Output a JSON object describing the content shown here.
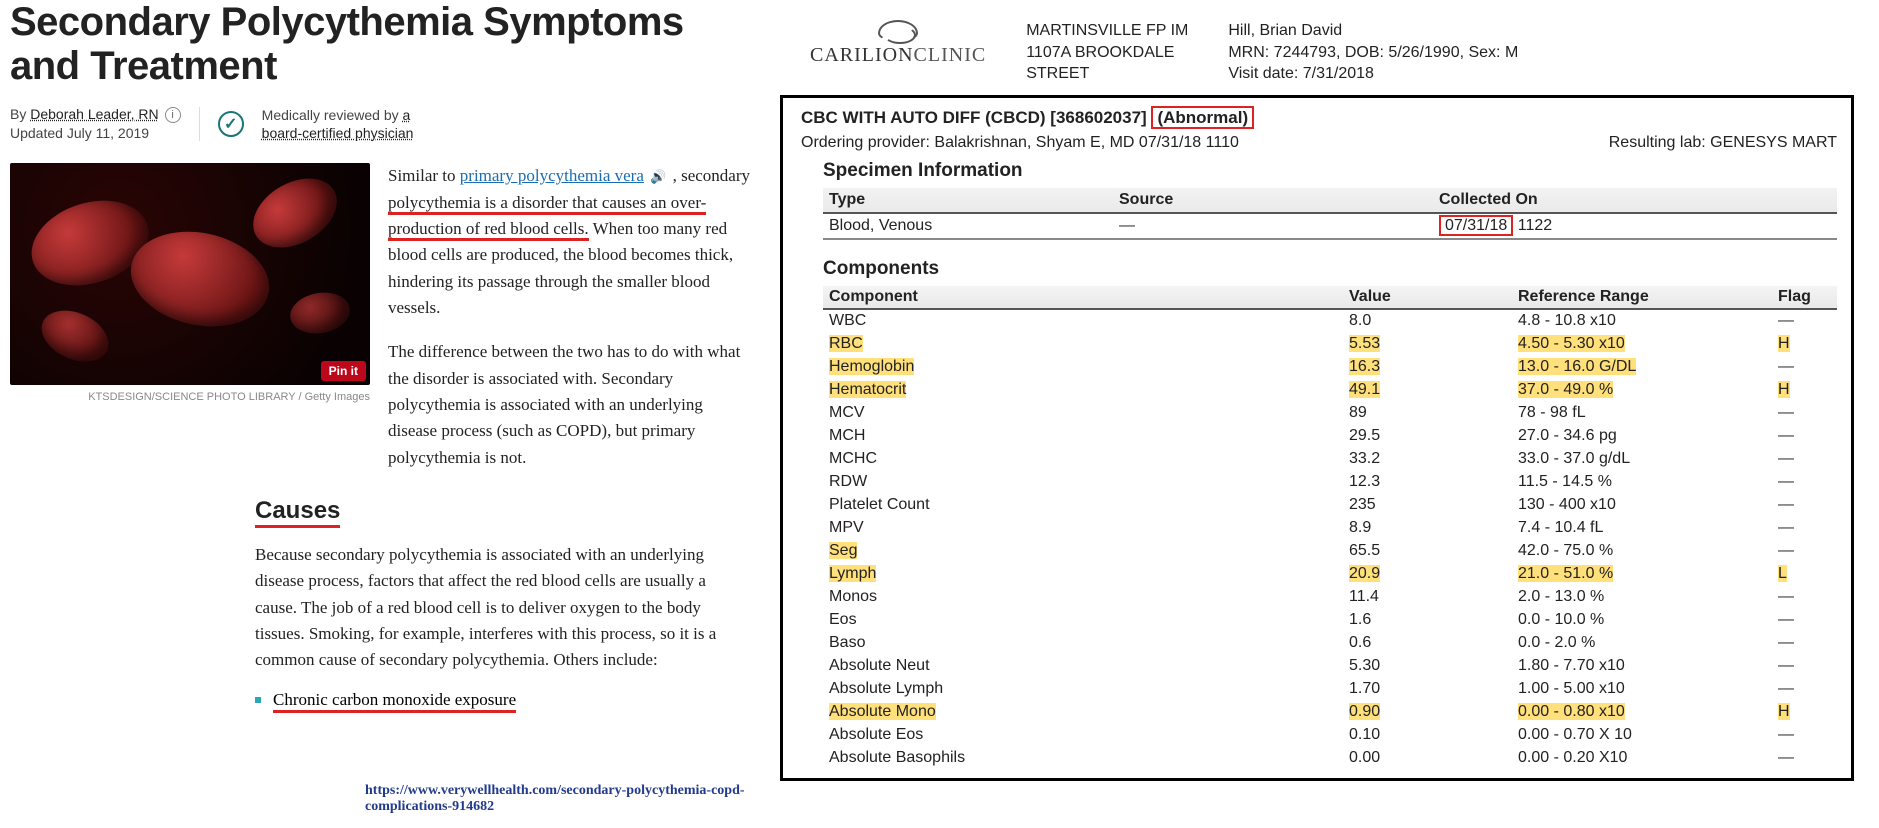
{
  "article": {
    "title": "Secondary Polycythemia Symptoms and Treatment",
    "by_prefix": "By ",
    "author": "Deborah Leader, RN",
    "updated": "Updated July 11, 2019",
    "mrev_prefix": "Medically reviewed by ",
    "mrev_link1": "a",
    "mrev_link2": "board-certified physician",
    "caption": "KTSDESIGN/SCIENCE PHOTO LIBRARY / Getty Images",
    "pinit": "Pin it",
    "p1_pre": "Similar to ",
    "p1_link": "primary polycythemia vera",
    "p1_mid": " , secondary ",
    "p1_ul": "polycythemia is a disorder that causes an over-",
    "p1_ul2": "production of red blood cells.",
    "p1_rest": " When too many red blood cells are produced, the blood becomes thick, hindering its passage through the smaller blood vessels.",
    "p2": "The difference between the two has to do with what the disorder is associated with. Secondary polycythemia is associated with an underlying disease process (such as COPD), but primary polycythemia is not.",
    "causes_h": "Causes",
    "p3": "Because secondary polycythemia is associated with an underlying disease process, factors that affect the red blood cells are usually a cause. The job of a red blood cell is to deliver oxygen to the body tissues. Smoking, for example, interferes with this process, so it is a common cause of secondary polycythemia. Others include:",
    "bullet1": "Chronic carbon monoxide exposure",
    "source_url": "https://www.verywellhealth.com/secondary-polycythemia-copd-complications-914682"
  },
  "report": {
    "logo_main": "CARILION",
    "logo_sub": "CLINIC",
    "addr_l1": "MARTINSVILLE FP IM",
    "addr_l2": "1107A BROOKDALE",
    "addr_l3": "STREET",
    "pt_name": "Hill, Brian David",
    "pt_mrn": "MRN: 7244793, DOB: 5/26/1990, Sex: M",
    "pt_visit": "Visit date: 7/31/2018",
    "title_main": "CBC WITH AUTO DIFF (CBCD) [368602037] ",
    "title_abn": "(Abnormal)",
    "ord_label": "Ordering provider:",
    "ord_val": "  Balakrishnan, Shyam E, MD  07/31/18 1110",
    "resulting_label": "Resulting lab:",
    "resulting_val": "  GENESYS MART",
    "spec_h": "Specimen Information",
    "spec_cols": {
      "c1": "Type",
      "c2": "Source",
      "c3": "Collected On"
    },
    "spec_row": {
      "c1": "Blood, Venous",
      "c2": "—",
      "c3_date": "07/31/18",
      "c3_time": " 1122"
    },
    "comp_h": "Components",
    "comp_cols": {
      "c1": "Component",
      "c2": "Value",
      "c3": "Reference Range",
      "c4": "Flag"
    },
    "rows": [
      {
        "n": "WBC",
        "v": "8.0",
        "r": "4.8 - 10.8 x10",
        "f": "—",
        "hl": false
      },
      {
        "n": "RBC",
        "v": "5.53",
        "r": "4.50 - 5.30 x10",
        "f": "H",
        "hl": true
      },
      {
        "n": "Hemoglobin",
        "v": "16.3",
        "r": "13.0 - 16.0 G/DL",
        "f": "—",
        "hl": true
      },
      {
        "n": "Hematocrit",
        "v": "49.1",
        "r": "37.0 - 49.0 %",
        "f": "H",
        "hl": true
      },
      {
        "n": "MCV",
        "v": "89",
        "r": "78 - 98 fL",
        "f": "—",
        "hl": false
      },
      {
        "n": "MCH",
        "v": "29.5",
        "r": "27.0 - 34.6 pg",
        "f": "—",
        "hl": false
      },
      {
        "n": "MCHC",
        "v": "33.2",
        "r": "33.0 - 37.0 g/dL",
        "f": "—",
        "hl": false
      },
      {
        "n": "RDW",
        "v": "12.3",
        "r": "11.5 - 14.5 %",
        "f": "—",
        "hl": false
      },
      {
        "n": "Platelet Count",
        "v": "235",
        "r": "130 - 400 x10",
        "f": "—",
        "hl": false
      },
      {
        "n": "MPV",
        "v": "8.9",
        "r": "7.4 - 10.4 fL",
        "f": "—",
        "hl": false
      },
      {
        "n": "Seg",
        "v": "65.5",
        "r": "42.0 - 75.0 %",
        "f": "—",
        "hl": false,
        "hlname": true
      },
      {
        "n": "Lymph",
        "v": "20.9",
        "r": "21.0 - 51.0 %",
        "f": "L",
        "hl": true
      },
      {
        "n": "Monos",
        "v": "11.4",
        "r": "2.0 - 13.0 %",
        "f": "—",
        "hl": false
      },
      {
        "n": "Eos",
        "v": "1.6",
        "r": "0.0 - 10.0 %",
        "f": "—",
        "hl": false
      },
      {
        "n": "Baso",
        "v": "0.6",
        "r": "0.0 - 2.0 %",
        "f": "—",
        "hl": false
      },
      {
        "n": "Absolute Neut",
        "v": "5.30",
        "r": "1.80 - 7.70 x10",
        "f": "—",
        "hl": false
      },
      {
        "n": "Absolute Lymph",
        "v": "1.70",
        "r": "1.00 - 5.00 x10",
        "f": "—",
        "hl": false
      },
      {
        "n": "Absolute Mono",
        "v": "0.90",
        "r": "0.00 - 0.80 x10",
        "f": "H",
        "hl": true
      },
      {
        "n": "Absolute Eos",
        "v": "0.10",
        "r": "0.00 - 0.70 X 10",
        "f": "—",
        "hl": false
      },
      {
        "n": "Absolute Basophils",
        "v": "0.00",
        "r": "0.00 - 0.20 X10",
        "f": "—",
        "hl": false
      }
    ]
  }
}
